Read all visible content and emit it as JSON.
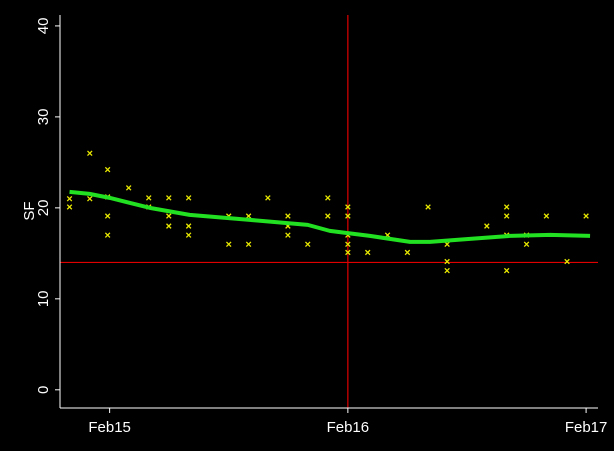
{
  "chart_data": {
    "type": "scatter",
    "ylabel": "SF",
    "xlim": [
      -2.5,
      24.6
    ],
    "ylim": [
      -2,
      41.2
    ],
    "xticks": [
      {
        "value": 0,
        "label": "Feb15"
      },
      {
        "value": 12,
        "label": "Feb16"
      },
      {
        "value": 24,
        "label": "Feb17"
      }
    ],
    "yticks": [
      0,
      10,
      20,
      30,
      40
    ],
    "vline": 12,
    "hline": 14,
    "ref_color": "#e00000",
    "series": [
      {
        "type": "scatter",
        "color": "#e8e800",
        "x": [
          -2.02,
          -2.02,
          -1,
          -1,
          -0.1,
          -0.1,
          -0.1,
          -0.1,
          0.96,
          1.97,
          1.97,
          2.98,
          2.98,
          2.98,
          3.98,
          3.98,
          3.98,
          6,
          6,
          7,
          7,
          7.97,
          8.98,
          8.98,
          8.98,
          9.98,
          10.99,
          10.99,
          12,
          12,
          12,
          12,
          12,
          13,
          14,
          15,
          16.04,
          17,
          17,
          17,
          19,
          20,
          20,
          20,
          20,
          21,
          21,
          22,
          23.04,
          24
        ],
        "values": [
          21,
          20.1,
          26,
          21,
          24.2,
          21.2,
          19.1,
          17,
          22.2,
          21.1,
          20.1,
          21.1,
          19.1,
          18,
          21.1,
          18,
          17,
          19.1,
          16,
          19.1,
          16,
          21.1,
          19.1,
          18,
          17,
          16,
          21.1,
          19.1,
          20.1,
          19.1,
          17,
          16,
          15.1,
          15.1,
          17,
          15.1,
          20.1,
          14.1,
          13.1,
          16,
          18,
          20.1,
          19.1,
          17,
          13.1,
          16,
          17,
          19.1,
          14.1,
          19.1
        ]
      },
      {
        "type": "line",
        "color": "#22e022",
        "x": [
          -2.02,
          -1.01,
          0,
          2.02,
          4.03,
          7.06,
          9.98,
          11.09,
          13.11,
          15.13,
          16.13,
          18.15,
          20.17,
          22.19,
          24.2
        ],
        "values": [
          21.76,
          21.54,
          21.1,
          20,
          19.23,
          18.68,
          18.13,
          17.47,
          16.92,
          16.26,
          16.26,
          16.59,
          16.92,
          17.03,
          16.92
        ]
      }
    ]
  }
}
